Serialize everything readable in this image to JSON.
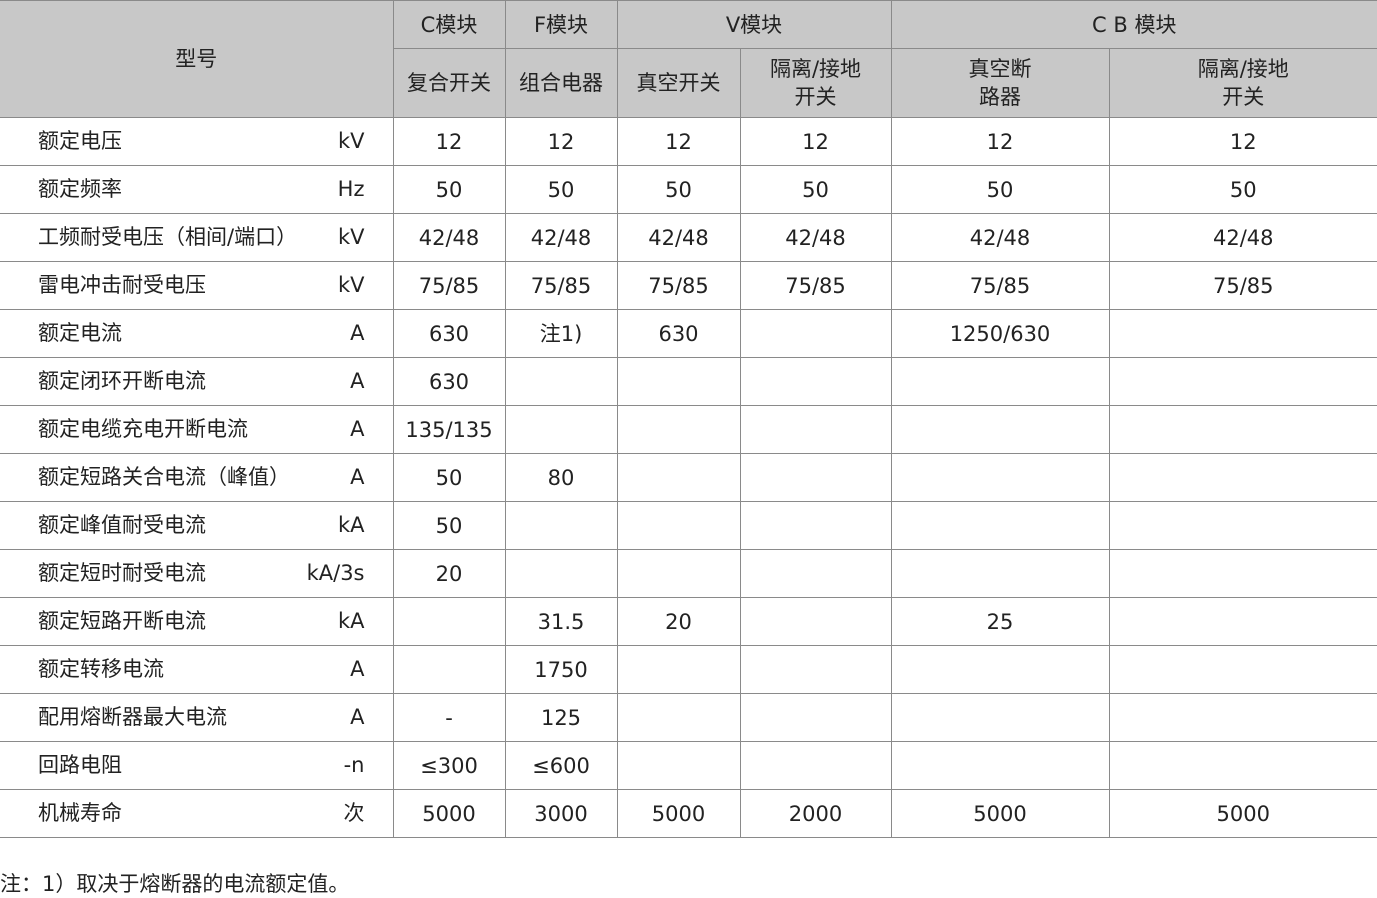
{
  "header": {
    "model_label": "型号",
    "groups": [
      "C模块",
      "F模块",
      "V模块",
      "C B 模块"
    ],
    "subcolumns": [
      "复合开关",
      "组合电器",
      "真空开关",
      "隔离/接地\n开关",
      "真空断\n路器",
      "隔离/接地\n开关"
    ]
  },
  "rows": [
    {
      "label": "额定电压",
      "unit": "kV",
      "values": [
        "12",
        "12",
        "12",
        "12",
        "12",
        "12"
      ]
    },
    {
      "label": "额定频率",
      "unit": "Hz",
      "values": [
        "50",
        "50",
        "50",
        "50",
        "50",
        "50"
      ]
    },
    {
      "label": "工频耐受电压（相间/端口）",
      "unit": "kV",
      "values": [
        "42/48",
        "42/48",
        "42/48",
        "42/48",
        "42/48",
        "42/48"
      ]
    },
    {
      "label": "雷电冲击耐受电压",
      "unit": "kV",
      "values": [
        "75/85",
        "75/85",
        "75/85",
        "75/85",
        "75/85",
        "75/85"
      ]
    },
    {
      "label": "额定电流",
      "unit": "A",
      "values": [
        "630",
        "注1)",
        "630",
        "",
        "1250/630",
        ""
      ]
    },
    {
      "label": "额定闭环开断电流",
      "unit": "A",
      "values": [
        "630",
        "",
        "",
        "",
        "",
        ""
      ]
    },
    {
      "label": "额定电缆充电开断电流",
      "unit": "A",
      "values": [
        "135/135",
        "",
        "",
        "",
        "",
        ""
      ]
    },
    {
      "label": "额定短路关合电流（峰值）",
      "unit": "A",
      "values": [
        "50",
        "80",
        "",
        "",
        "",
        ""
      ]
    },
    {
      "label": "额定峰值耐受电流",
      "unit": "kA",
      "values": [
        "50",
        "",
        "",
        "",
        "",
        ""
      ]
    },
    {
      "label": "额定短时耐受电流",
      "unit": "kA/3s",
      "values": [
        "20",
        "",
        "",
        "",
        "",
        ""
      ]
    },
    {
      "label": "额定短路开断电流",
      "unit": "kA",
      "values": [
        "",
        "31.5",
        "20",
        "",
        "25",
        ""
      ]
    },
    {
      "label": "额定转移电流",
      "unit": "A",
      "values": [
        "",
        "1750",
        "",
        "",
        "",
        ""
      ]
    },
    {
      "label": "配用熔断器最大电流",
      "unit": "A",
      "values": [
        "-",
        "125",
        "",
        "",
        "",
        ""
      ]
    },
    {
      "label": "回路电阻",
      "unit": "-n",
      "values": [
        "≤300",
        "≤600",
        "",
        "",
        "",
        ""
      ]
    },
    {
      "label": "机械寿命",
      "unit": "次",
      "values": [
        "5000",
        "3000",
        "5000",
        "2000",
        "5000",
        "5000"
      ]
    }
  ],
  "footnote": "注：1）取决于熔断器的电流额定值。"
}
